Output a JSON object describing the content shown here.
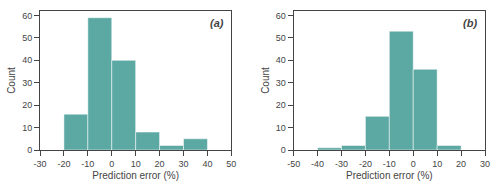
{
  "chart_data": [
    {
      "type": "histogram",
      "bins": [
        -30,
        -20,
        -10,
        0,
        10,
        20,
        30,
        40,
        50
      ],
      "values": [
        0,
        16,
        59,
        40,
        8,
        2,
        5,
        0
      ],
      "color": "#5ca8a3",
      "xlim": [
        -30,
        50
      ],
      "xticks": [
        -30,
        -20,
        -10,
        0,
        10,
        20,
        30,
        40,
        50
      ],
      "ylim": [
        0,
        62
      ],
      "yticks": [
        0,
        10,
        20,
        30,
        40,
        50,
        60
      ],
      "xlabel": "Prediction error (%)",
      "ylabel": "Count",
      "annotation": "(a)",
      "grid": false
    },
    {
      "type": "histogram",
      "bins": [
        -50,
        -40,
        -30,
        -20,
        -10,
        0,
        10,
        20,
        30
      ],
      "values": [
        0,
        1,
        2,
        15,
        53,
        36,
        2,
        0
      ],
      "color": "#5ca8a3",
      "xlim": [
        -50,
        30
      ],
      "xticks": [
        -50,
        -40,
        -30,
        -20,
        -10,
        0,
        10,
        20,
        30
      ],
      "ylim": [
        0,
        62
      ],
      "yticks": [
        0,
        10,
        20,
        30,
        40,
        50,
        60
      ],
      "xlabel": "Prediction error (%)",
      "ylabel": "Count",
      "annotation": "(b)",
      "grid": false
    }
  ]
}
